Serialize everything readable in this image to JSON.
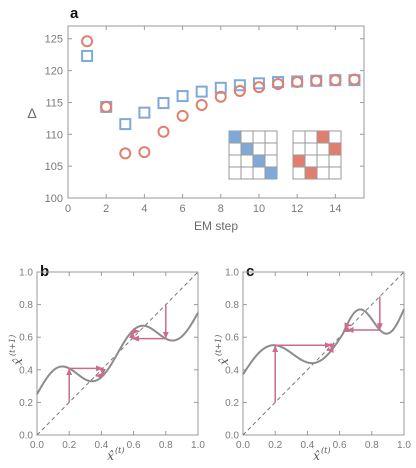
{
  "colors": {
    "blue": "#7FA9D8",
    "red": "#E07F6E",
    "curve": "#8C8C8C",
    "arrow": "#CC6B8A",
    "dash": "#777777",
    "axis": "#9A9A9A"
  },
  "chart_data": [
    {
      "type": "scatter",
      "panel_label": "a",
      "xlabel": "EM step",
      "ylabel": "Δ",
      "xlim": [
        0,
        15.5
      ],
      "ylim": [
        100,
        127
      ],
      "xticks": [
        "0",
        "2",
        "4",
        "6",
        "8",
        "10",
        "12",
        "14"
      ],
      "yticks": [
        "100",
        "105",
        "110",
        "115",
        "120",
        "125"
      ],
      "series": [
        {
          "marker": "square",
          "color": "#7FA9D8",
          "points": [
            [
              1,
              122.3
            ],
            [
              2,
              114.3
            ],
            [
              3,
              111.6
            ],
            [
              4,
              113.4
            ],
            [
              5,
              114.9
            ],
            [
              6,
              116.0
            ],
            [
              7,
              116.7
            ],
            [
              8,
              117.3
            ],
            [
              9,
              117.7
            ],
            [
              10,
              118.0
            ],
            [
              11,
              118.2
            ],
            [
              12,
              118.3
            ],
            [
              13,
              118.4
            ],
            [
              14,
              118.5
            ],
            [
              15,
              118.5
            ]
          ]
        },
        {
          "marker": "circle",
          "color": "#E07F6E",
          "points": [
            [
              1,
              124.6
            ],
            [
              2,
              114.3
            ],
            [
              3,
              107.0
            ],
            [
              4,
              107.2
            ],
            [
              5,
              110.4
            ],
            [
              6,
              112.9
            ],
            [
              7,
              114.6
            ],
            [
              8,
              115.9
            ],
            [
              9,
              116.8
            ],
            [
              10,
              117.4
            ],
            [
              11,
              117.9
            ],
            [
              12,
              118.2
            ],
            [
              13,
              118.4
            ],
            [
              14,
              118.5
            ],
            [
              15,
              118.6
            ]
          ]
        }
      ],
      "insets": [
        {
          "color": "#7FA9D8",
          "grid": 4,
          "filled": [
            [
              0,
              0
            ],
            [
              1,
              1
            ],
            [
              2,
              2
            ],
            [
              3,
              3
            ]
          ]
        },
        {
          "color": "#E07F6E",
          "grid": 4,
          "filled": [
            [
              0,
              2
            ],
            [
              1,
              3
            ],
            [
              2,
              0
            ],
            [
              3,
              1
            ]
          ]
        }
      ]
    },
    {
      "type": "line",
      "panel_label": "b",
      "xlabel": "x̂",
      "xlabel_sup": "(t)",
      "ylabel": "x̂",
      "ylabel_sup": "(t+1)",
      "xlim": [
        0,
        1
      ],
      "ylim": [
        0,
        1
      ],
      "xticks": [
        "0.0",
        "0.2",
        "0.4",
        "0.6",
        "0.8",
        "1.0"
      ],
      "yticks": [
        "0.0",
        "0.2",
        "0.4",
        "0.6",
        "0.8",
        "1.0"
      ],
      "curve": {
        "fixed_point": 0.5,
        "slope": 0.5,
        "amplitude": 0.1
      },
      "cobweb_starts": [
        0.2,
        0.8
      ]
    },
    {
      "type": "line",
      "panel_label": "c",
      "xlabel": "x̂",
      "xlabel_sup": "(t)",
      "ylabel": "x̂",
      "ylabel_sup": "(t+1)",
      "xlim": [
        0,
        1
      ],
      "ylim": [
        0,
        1
      ],
      "xticks": [
        "0.0",
        "0.2",
        "0.4",
        "0.6",
        "0.8",
        "1.0"
      ],
      "yticks": [
        "0.0",
        "0.2",
        "0.4",
        "0.6",
        "0.8",
        "1.0"
      ],
      "curve": {
        "fixed_point": 0.62,
        "slope": 0.4,
        "amplitude": 0.11
      },
      "cobweb_starts": [
        0.2,
        0.85
      ]
    }
  ]
}
